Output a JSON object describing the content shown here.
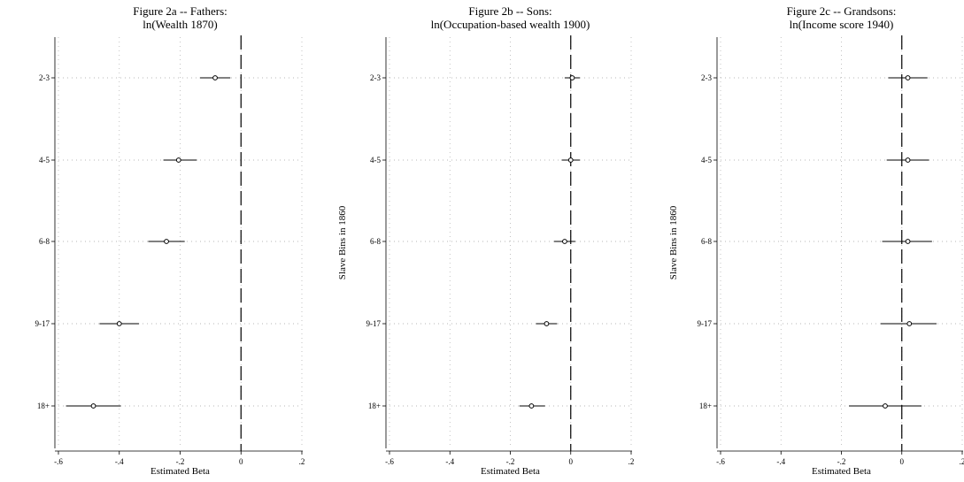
{
  "chart_data": [
    {
      "type": "scatter",
      "title": "Figure 2a -- Fathers:",
      "subtitle": "ln(Wealth 1870)",
      "xlabel": "Estimated Beta",
      "ylabel": "",
      "xlim": [
        -0.6,
        0.2
      ],
      "x_ticks": [
        "-.6",
        "-.4",
        "-.2",
        "0",
        ".2"
      ],
      "x_tick_values": [
        -0.6,
        -0.4,
        -0.2,
        0,
        0.2
      ],
      "categories": [
        "2-3",
        "4-5",
        "6-8",
        "9-17",
        "18+"
      ],
      "estimates": [
        -0.085,
        -0.205,
        -0.245,
        -0.4,
        -0.485
      ],
      "ci_low": [
        -0.135,
        -0.255,
        -0.305,
        -0.465,
        -0.575
      ],
      "ci_high": [
        -0.035,
        -0.145,
        -0.185,
        -0.335,
        -0.395
      ],
      "reference_line": 0,
      "grid": true
    },
    {
      "type": "scatter",
      "title": "Figure 2b -- Sons:",
      "subtitle": "ln(Occupation-based wealth 1900)",
      "xlabel": "Estimated Beta",
      "ylabel": "Slave Bins in 1860",
      "xlim": [
        -0.6,
        0.2
      ],
      "x_ticks": [
        "-.6",
        "-.4",
        "-.2",
        "0",
        ".2"
      ],
      "x_tick_values": [
        -0.6,
        -0.4,
        -0.2,
        0,
        0.2
      ],
      "categories": [
        "2-3",
        "4-5",
        "6-8",
        "9-17",
        "18+"
      ],
      "estimates": [
        0.005,
        0.0,
        -0.02,
        -0.08,
        -0.13
      ],
      "ci_low": [
        -0.02,
        -0.03,
        -0.055,
        -0.115,
        -0.17
      ],
      "ci_high": [
        0.03,
        0.03,
        0.015,
        -0.045,
        -0.085
      ],
      "reference_line": 0,
      "grid": true
    },
    {
      "type": "scatter",
      "title": "Figure 2c -- Grandsons:",
      "subtitle": "ln(Income score 1940)",
      "xlabel": "Estimated Beta",
      "ylabel": "Slave Bins in 1860",
      "xlim": [
        -0.6,
        0.2
      ],
      "x_ticks": [
        "-.6",
        "-.4",
        "-.2",
        "0",
        ".2"
      ],
      "x_tick_values": [
        -0.6,
        -0.4,
        -0.2,
        0,
        0.2
      ],
      "categories": [
        "2-3",
        "4-5",
        "6-8",
        "9-17",
        "18+"
      ],
      "estimates": [
        0.02,
        0.02,
        0.02,
        0.025,
        -0.055
      ],
      "ci_low": [
        -0.045,
        -0.05,
        -0.065,
        -0.07,
        -0.175
      ],
      "ci_high": [
        0.085,
        0.09,
        0.1,
        0.115,
        0.065
      ],
      "reference_line": 0,
      "grid": true
    }
  ]
}
